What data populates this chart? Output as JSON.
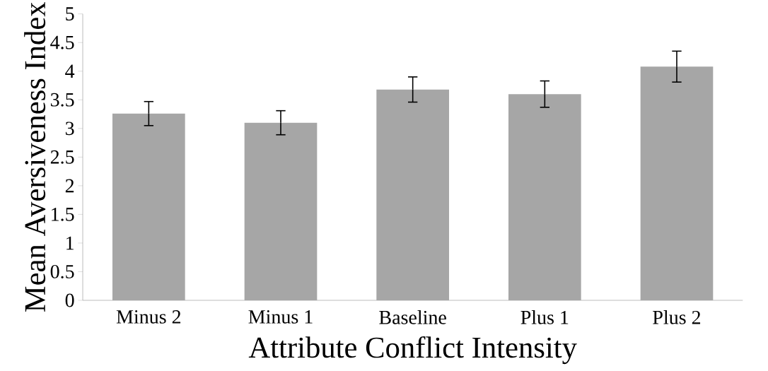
{
  "chart_data": {
    "type": "bar",
    "xlabel": "Attribute Conflict Intensity",
    "ylabel": "Mean Aversiveness Index",
    "categories": [
      "Minus 2",
      "Minus 1",
      "Baseline",
      "Plus 1",
      "Plus 2"
    ],
    "values": [
      3.26,
      3.1,
      3.68,
      3.6,
      4.08
    ],
    "errors": [
      0.21,
      0.21,
      0.22,
      0.23,
      0.27
    ],
    "color": "#a6a6a6",
    "ylim": [
      0,
      5
    ],
    "yticks": [
      0,
      {
        "value": 0.5,
        "label": "0.5"
      },
      1,
      {
        "value": 1.5,
        "label": "1.5"
      },
      2,
      {
        "value": 2.5,
        "label": "2.5"
      },
      3,
      {
        "value": 3.5,
        "label": "3.5"
      },
      4,
      {
        "value": 4.5,
        "label": "4.5"
      },
      5
    ],
    "grid": false
  }
}
